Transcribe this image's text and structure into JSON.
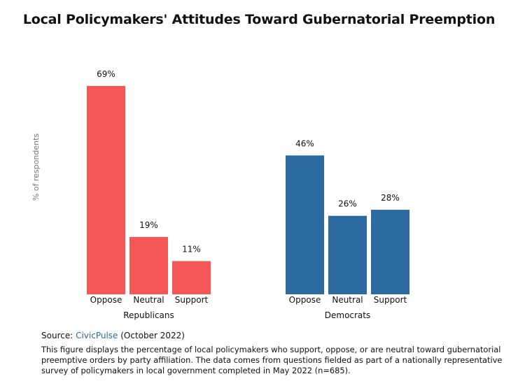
{
  "title": "Local Policymakers' Attitudes Toward Gubernatorial Preemption",
  "chart_data": {
    "type": "bar",
    "title": "Local Policymakers' Attitudes Toward Gubernatorial Preemption",
    "ylabel": "% of respondents",
    "xlabel": "",
    "ylim": [
      0,
      69
    ],
    "grid": false,
    "groups": [
      {
        "name": "Republicans",
        "color": "#f55656",
        "categories": [
          "Oppose",
          "Neutral",
          "Support"
        ],
        "values": [
          69,
          19,
          11
        ],
        "labels": [
          "69%",
          "19%",
          "11%"
        ]
      },
      {
        "name": "Democrats",
        "color": "#2c6aa0",
        "categories": [
          "Oppose",
          "Neutral",
          "Support"
        ],
        "values": [
          46,
          26,
          28
        ],
        "labels": [
          "46%",
          "26%",
          "28%"
        ]
      }
    ]
  },
  "source": {
    "prefix": "Source: ",
    "link_text": "CivicPulse",
    "suffix": " (October 2022)"
  },
  "caption": "This figure displays the percentage of local policymakers who support, oppose, or are neutral toward gubernatorial preemptive orders by party affiliation. The data comes from questions fielded as part of a nationally representative survey of policymakers in local government completed in May 2022 (n=685)."
}
